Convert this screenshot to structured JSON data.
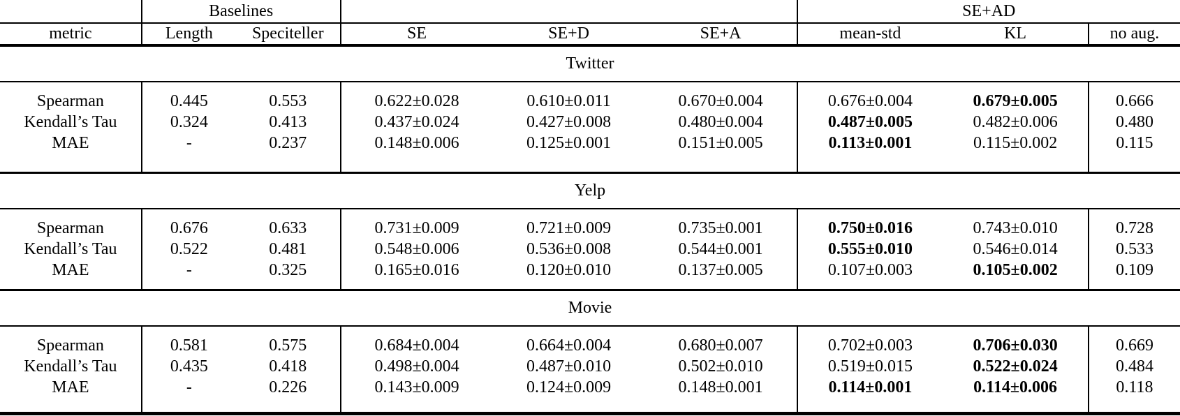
{
  "table": {
    "group_header": {
      "baselines": "Baselines",
      "se_ad": "SE+AD"
    },
    "columns": [
      "metric",
      "Length",
      "Speciteller",
      "SE",
      "SE+D",
      "SE+A",
      "mean-std",
      "KL",
      "no aug."
    ],
    "sections": [
      {
        "title": "Twitter",
        "rows": [
          {
            "metric": "Spearman",
            "values": [
              "0.445",
              "0.553",
              "0.622±0.028",
              "0.610±0.011",
              "0.670±0.004",
              "0.676±0.004",
              "0.679±0.005",
              "0.666"
            ],
            "bold": [
              6
            ]
          },
          {
            "metric": "Kendall’s Tau",
            "values": [
              "0.324",
              "0.413",
              "0.437±0.024",
              "0.427±0.008",
              "0.480±0.004",
              "0.487±0.005",
              "0.482±0.006",
              "0.480"
            ],
            "bold": [
              5
            ]
          },
          {
            "metric": "MAE",
            "values": [
              "-",
              "0.237",
              "0.148±0.006",
              "0.125±0.001",
              "0.151±0.005",
              "0.113±0.001",
              "0.115±0.002",
              "0.115"
            ],
            "bold": [
              5
            ]
          }
        ]
      },
      {
        "title": "Yelp",
        "rows": [
          {
            "metric": "Spearman",
            "values": [
              "0.676",
              "0.633",
              "0.731±0.009",
              "0.721±0.009",
              "0.735±0.001",
              "0.750±0.016",
              "0.743±0.010",
              "0.728"
            ],
            "bold": [
              5
            ]
          },
          {
            "metric": "Kendall’s Tau",
            "values": [
              "0.522",
              "0.481",
              "0.548±0.006",
              "0.536±0.008",
              "0.544±0.001",
              "0.555±0.010",
              "0.546±0.014",
              "0.533"
            ],
            "bold": [
              5
            ]
          },
          {
            "metric": "MAE",
            "values": [
              "-",
              "0.325",
              "0.165±0.016",
              "0.120±0.010",
              "0.137±0.005",
              "0.107±0.003",
              "0.105±0.002",
              "0.109"
            ],
            "bold": [
              6
            ]
          }
        ]
      },
      {
        "title": "Movie",
        "rows": [
          {
            "metric": "Spearman",
            "values": [
              "0.581",
              "0.575",
              "0.684±0.004",
              "0.664±0.004",
              "0.680±0.007",
              "0.702±0.003",
              "0.706±0.030",
              "0.669"
            ],
            "bold": [
              6
            ]
          },
          {
            "metric": "Kendall’s Tau",
            "values": [
              "0.435",
              "0.418",
              "0.498±0.004",
              "0.487±0.010",
              "0.502±0.010",
              "0.519±0.015",
              "0.522±0.024",
              "0.484"
            ],
            "bold": [
              6
            ]
          },
          {
            "metric": "MAE",
            "values": [
              "-",
              "0.226",
              "0.143±0.009",
              "0.124±0.009",
              "0.148±0.001",
              "0.114±0.001",
              "0.114±0.006",
              "0.118"
            ],
            "bold": [
              5,
              6
            ]
          }
        ]
      }
    ]
  }
}
